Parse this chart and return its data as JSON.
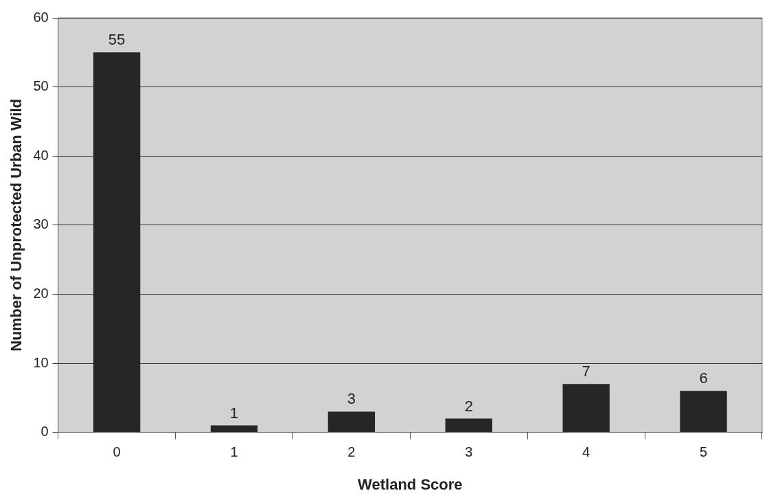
{
  "chart_data": {
    "type": "bar",
    "xlabel": "Wetland Score",
    "ylabel": "Number of Unprotected Urban Wild",
    "categories": [
      "0",
      "1",
      "2",
      "3",
      "4",
      "5"
    ],
    "values": [
      55,
      1,
      3,
      2,
      7,
      6
    ],
    "color": "#262626",
    "ylim": [
      0,
      60
    ],
    "yticks": [
      0,
      10,
      20,
      30,
      40,
      50,
      60
    ],
    "grid": "y",
    "data_labels": true,
    "legend": false
  }
}
